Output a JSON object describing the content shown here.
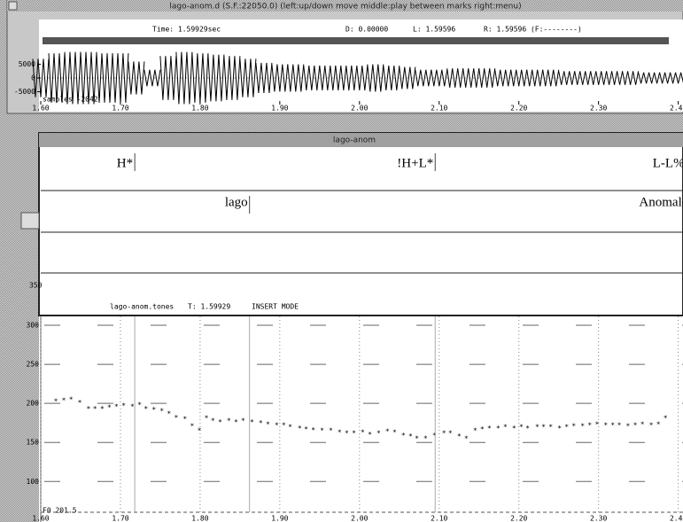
{
  "wave_window": {
    "title": "lago-anom.d (S.F.:22050.0) (left:up/down move  middle:play between marks  right:menu)",
    "time_readout": "Time:  1.59929sec",
    "d_readout": "D: 0.00000",
    "l_readout": "L:  1.59596",
    "r_readout": "R:  1.59596 (F:--------)"
  },
  "label_window": {
    "title": "lago-anom",
    "tiers": [
      {
        "labels": [
          {
            "text": "H*",
            "time": 1.718
          },
          {
            "text": "!H+L*",
            "time": 2.095
          },
          {
            "text": "L-L%",
            "time": 2.41
          }
        ]
      },
      {
        "labels": [
          {
            "text": "lago",
            "time": 1.862
          },
          {
            "text": "Anomalous",
            "time": 2.43
          }
        ]
      }
    ],
    "footer_file": "lago-anom.tones",
    "footer_time": "T:  1.59929",
    "footer_mode": "INSERT MODE",
    "side_tick": "350"
  },
  "chart_data": [
    {
      "type": "line",
      "label": "samples -2042",
      "x": [
        1.6,
        1.62,
        1.64,
        1.66,
        1.68,
        1.7,
        1.72,
        1.74,
        1.76,
        1.78,
        1.8,
        1.82,
        1.84,
        1.86,
        1.88,
        1.9,
        1.92,
        1.94,
        1.96,
        1.98,
        2.0,
        2.02,
        2.04,
        2.06,
        2.08,
        2.1,
        2.12,
        2.14,
        2.16,
        2.18,
        2.2,
        2.22,
        2.24,
        2.26,
        2.28,
        2.3,
        2.32,
        2.34,
        2.36,
        2.38,
        2.4
      ],
      "values": [
        7000,
        9000,
        9500,
        9500,
        9000,
        9000,
        6000,
        3000,
        8000,
        9500,
        9000,
        8500,
        8000,
        7000,
        5500,
        5000,
        5000,
        4500,
        4500,
        4500,
        4500,
        5000,
        4500,
        4000,
        3000,
        3000,
        3500,
        3500,
        3500,
        3000,
        3000,
        3000,
        3000,
        2500,
        2500,
        2500,
        2500,
        2500,
        2000,
        2000,
        2000
      ],
      "xlim": [
        1.6,
        2.406
      ],
      "xticks": [
        {
          "value": 1.6,
          "label": "1.60"
        },
        {
          "value": 1.7,
          "label": "1.70"
        },
        {
          "value": 1.8,
          "label": "1.80"
        },
        {
          "value": 1.9,
          "label": "1.90"
        },
        {
          "value": 2.0,
          "label": "2.00"
        },
        {
          "value": 2.1,
          "label": "2.10"
        },
        {
          "value": 2.2,
          "label": "2.20"
        },
        {
          "value": 2.3,
          "label": "2.30"
        },
        {
          "value": 2.4,
          "label": "2.40"
        }
      ],
      "ylim": [
        -10000,
        10000
      ],
      "yticks": [
        5000,
        0,
        -5000
      ],
      "color": "#000000"
    },
    {
      "type": "scatter",
      "label": "F0 201.5",
      "x": [
        1.619,
        1.629,
        1.638,
        1.649,
        1.66,
        1.668,
        1.677,
        1.686,
        1.695,
        1.704,
        1.715,
        1.724,
        1.732,
        1.742,
        1.752,
        1.761,
        1.77,
        1.781,
        1.79,
        1.799,
        1.808,
        1.816,
        1.825,
        1.836,
        1.845,
        1.854,
        1.865,
        1.876,
        1.885,
        1.896,
        1.905,
        1.913,
        1.925,
        1.933,
        1.942,
        1.953,
        1.964,
        1.975,
        1.984,
        1.993,
        2.004,
        2.013,
        2.024,
        2.035,
        2.044,
        2.055,
        2.064,
        2.072,
        2.083,
        2.094,
        2.106,
        2.114,
        2.125,
        2.134,
        2.145,
        2.154,
        2.163,
        2.174,
        2.183,
        2.194,
        2.203,
        2.211,
        2.223,
        2.231,
        2.24,
        2.251,
        2.26,
        2.269,
        2.28,
        2.289,
        2.298,
        2.309,
        2.318,
        2.326,
        2.337,
        2.346,
        2.355,
        2.366,
        2.375,
        2.384
      ],
      "values": [
        205,
        206,
        207,
        203,
        195,
        195,
        195,
        197,
        198,
        199,
        198,
        200,
        195,
        194,
        192,
        189,
        184,
        182,
        173,
        167,
        183,
        180,
        178,
        180,
        178,
        180,
        178,
        177,
        175,
        174,
        174,
        172,
        170,
        169,
        168,
        167,
        167,
        165,
        164,
        164,
        165,
        162,
        164,
        166,
        165,
        161,
        160,
        157,
        157,
        161,
        164,
        164,
        160,
        157,
        167,
        169,
        170,
        170,
        172,
        170,
        172,
        170,
        172,
        172,
        172,
        170,
        172,
        173,
        173,
        174,
        175,
        174,
        174,
        174,
        173,
        174,
        175,
        174,
        175,
        183
      ],
      "xlim": [
        1.6,
        2.406
      ],
      "xticks": [
        {
          "value": 1.6,
          "label": "1.60"
        },
        {
          "value": 1.7,
          "label": "1.70"
        },
        {
          "value": 1.8,
          "label": "1.80"
        },
        {
          "value": 1.9,
          "label": "1.90"
        },
        {
          "value": 2.0,
          "label": "2.00"
        },
        {
          "value": 2.1,
          "label": "2.10"
        },
        {
          "value": 2.2,
          "label": "2.20"
        },
        {
          "value": 2.3,
          "label": "2.30"
        },
        {
          "value": 2.4,
          "label": "2.40"
        }
      ],
      "ylim": [
        64,
        308
      ],
      "yticks": [
        300,
        250,
        200,
        150,
        100
      ],
      "grid": true,
      "color": "#333333"
    }
  ]
}
